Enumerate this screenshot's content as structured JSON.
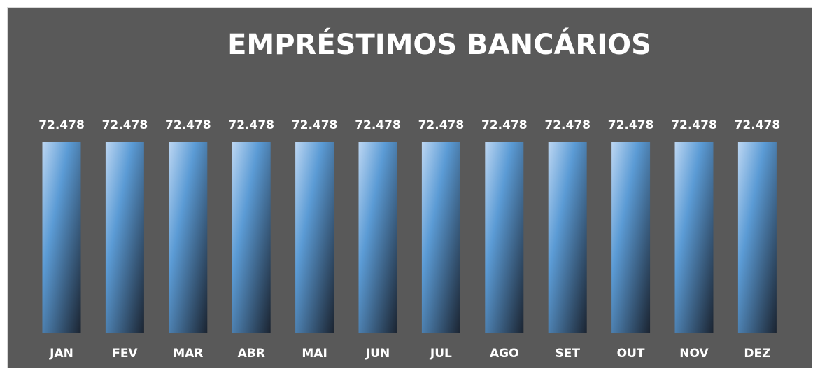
{
  "chart_data": {
    "type": "bar",
    "title": "EMPRÉSTIMOS BANCÁRIOS",
    "categories": [
      "JAN",
      "FEV",
      "MAR",
      "ABR",
      "MAI",
      "JUN",
      "JUL",
      "AGO",
      "SET",
      "OUT",
      "NOV",
      "DEZ"
    ],
    "values": [
      72.478,
      72.478,
      72.478,
      72.478,
      72.478,
      72.478,
      72.478,
      72.478,
      72.478,
      72.478,
      72.478,
      72.478
    ],
    "color": "#5b9bd5"
  }
}
